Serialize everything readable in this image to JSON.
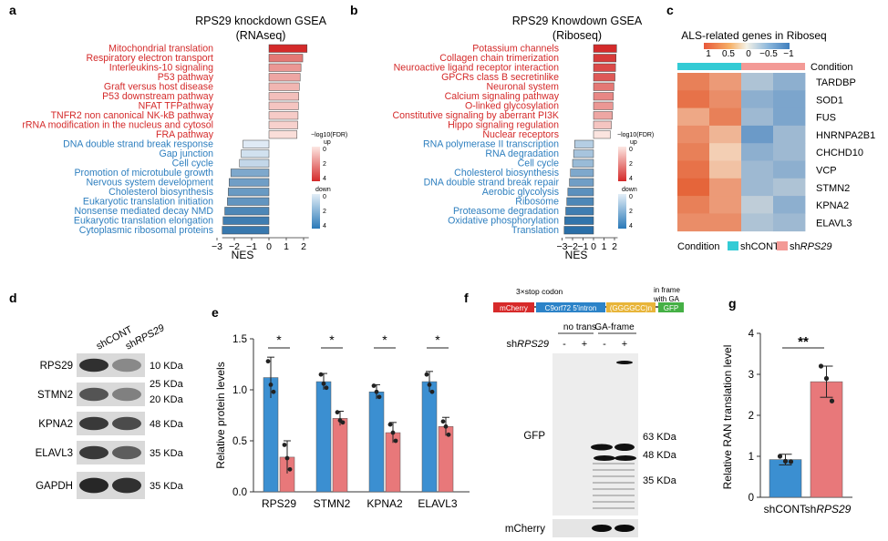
{
  "panel_letters": [
    "a",
    "b",
    "c",
    "d",
    "e",
    "f",
    "g"
  ],
  "colors": {
    "up": "#d42a2a",
    "down": "#2f7ebc",
    "red_text": "#d42a2a",
    "blue_text": "#2e7fbf",
    "bar_blue": "#3b8fd1",
    "bar_red": "#e8787a",
    "cont": "#33cbd5",
    "rps": "#f39a96"
  },
  "chart_data": [
    {
      "panel": "a",
      "type": "bar",
      "orientation": "horizontal",
      "title": "RPS29 knockdown GSEA",
      "subtitle": "(RNAseq)",
      "xlabel": "NES",
      "xlim": [
        -3,
        3
      ],
      "x_ticks": [
        "−3",
        "−2",
        "−1",
        "0",
        "1",
        "2"
      ],
      "categories": [
        "Mitochondrial translation",
        "Respiratory electron transport",
        "Interleukins-10 signaling",
        "P53 pathway",
        "Graft versus host disease",
        "P53 downstream pathway",
        "NFAT TFPathway",
        "TNFR2 non canonical NK-kB pathway",
        "rRNA modification in the nucleus and cytosol",
        "FRA pathway",
        "DNA double strand break response",
        "Gap junction",
        "Cell cycle",
        "Promotion of microtubule growth",
        "Nervous system development",
        "Cholesterol biosynthesis",
        "Eukaryotic translation initiation",
        "Nonsense mediated decay NMD",
        "Eukaryotic translation elongation",
        "Cytoplasmic ribosomal proteins"
      ],
      "values": [
        2.2,
        1.95,
        1.85,
        1.8,
        1.75,
        1.72,
        1.7,
        1.68,
        1.66,
        1.62,
        -1.5,
        -1.6,
        -1.7,
        -2.2,
        -2.3,
        -2.35,
        -2.4,
        -2.55,
        -2.65,
        -2.7
      ],
      "legend": {
        "title": "−log10(FDR)",
        "up": "up",
        "down": "down",
        "up_ticks": [
          "0",
          "2",
          "4"
        ],
        "down_ticks": [
          "0",
          "2",
          "4"
        ]
      }
    },
    {
      "panel": "b",
      "type": "bar",
      "orientation": "horizontal",
      "title": "RPS29 Knowdown GSEA",
      "subtitle": "(Riboseq)",
      "xlabel": "NES",
      "xlim": [
        -3,
        3
      ],
      "x_ticks": [
        "−3",
        "−2",
        "−1",
        "0",
        "1",
        "2"
      ],
      "categories": [
        "Potassium channels",
        "Collagen chain trimerization",
        "Neuroactive ligand receptor interaction",
        "GPCRs class B secretinlike",
        "Neuronal system",
        "Calcium signaling pathway",
        "O-linked glycosylation",
        "Constitutive signaling by aberrant PI3K",
        "Hippo signaling regulation",
        "Nuclear receptors",
        "RNA polymerase II transcription",
        "RNA degradation",
        "Cell cycle",
        "Cholesterol biosynthesis",
        "DNA double strand break repair",
        "Aerobic glycolysis",
        "Ribosome",
        "Proteasome degradation",
        "Oxidative phosphorylation",
        "Translation"
      ],
      "values": [
        2.2,
        2.15,
        2.1,
        2.05,
        1.95,
        1.9,
        1.85,
        1.8,
        1.7,
        1.6,
        -1.8,
        -1.9,
        -2.0,
        -2.2,
        -2.3,
        -2.45,
        -2.55,
        -2.65,
        -2.75,
        -2.8
      ],
      "legend": {
        "title": "−log10(FDR)",
        "up": "up",
        "down": "down",
        "up_ticks": [
          "0",
          "2",
          "4"
        ],
        "down_ticks": [
          "0",
          "2",
          "4"
        ]
      }
    },
    {
      "panel": "c",
      "type": "heatmap",
      "title": "ALS-related genes in Riboseq",
      "scale_ticks": [
        "1",
        "0.5",
        "0",
        "−0.5",
        "−1"
      ],
      "row_header": "Condition",
      "rows": [
        "TARDBP",
        "SOD1",
        "FUS",
        "HNRNPA2B1",
        "CHCHD10",
        "VCP",
        "STMN2",
        "KPNA2",
        "ELAVL3"
      ],
      "columns": [
        "shCONT",
        "shCONT",
        "shRPS29",
        "shRPS29"
      ],
      "values": [
        [
          0.8,
          0.6,
          -0.4,
          -0.6
        ],
        [
          0.9,
          0.7,
          -0.6,
          -0.7
        ],
        [
          0.5,
          0.8,
          -0.5,
          -0.7
        ],
        [
          0.7,
          0.4,
          -0.8,
          -0.5
        ],
        [
          0.8,
          0.2,
          -0.6,
          -0.5
        ],
        [
          0.9,
          0.3,
          -0.5,
          -0.6
        ],
        [
          1.0,
          0.6,
          -0.5,
          -0.4
        ],
        [
          0.8,
          0.6,
          -0.3,
          -0.6
        ],
        [
          0.7,
          0.7,
          -0.4,
          -0.5
        ]
      ],
      "legend_label": "Condition",
      "legend_items": [
        {
          "prefix": "shCONT",
          "italic": ""
        },
        {
          "prefix": "sh",
          "italic": "RPS29"
        }
      ]
    },
    {
      "panel": "e",
      "type": "bar",
      "ylabel": "Relative protein levels",
      "ylim": [
        0,
        1.5
      ],
      "y_ticks": [
        "0.0",
        "0.5",
        "1.0",
        "1.5"
      ],
      "categories": [
        "RPS29",
        "STMN2",
        "KPNA2",
        "ELAVL3"
      ],
      "series": [
        {
          "values": [
            1.12,
            1.08,
            0.98,
            1.08
          ],
          "err": [
            0.2,
            0.08,
            0.07,
            0.1
          ]
        },
        {
          "values": [
            0.34,
            0.72,
            0.58,
            0.64
          ],
          "err": [
            0.16,
            0.07,
            0.1,
            0.09
          ]
        }
      ],
      "sig": "*"
    },
    {
      "panel": "g",
      "type": "bar",
      "ylabel": "Relative RAN translation level",
      "ylim": [
        0,
        4
      ],
      "y_ticks": [
        "0",
        "1",
        "2",
        "3",
        "4"
      ],
      "categories": [
        "shCONT",
        "shRPS29"
      ],
      "values": [
        0.92,
        2.82
      ],
      "err": [
        0.13,
        0.38
      ],
      "sig": "**"
    }
  ],
  "panel_d": {
    "lanes": [
      "shCONT",
      "shRPS29"
    ],
    "bands": [
      {
        "name": "RPS29",
        "kda": [
          "10 KDa"
        ]
      },
      {
        "name": "STMN2",
        "kda": [
          "25 KDa",
          "20 KDa"
        ]
      },
      {
        "name": "KPNA2",
        "kda": [
          "48 KDa"
        ]
      },
      {
        "name": "ELAVL3",
        "kda": [
          "35 KDa"
        ]
      },
      {
        "name": "GAPDH",
        "kda": [
          "35 KDa"
        ]
      }
    ]
  },
  "panel_f": {
    "construct_label": "3×stop codon",
    "frame_label": "in frame with GA",
    "boxes": [
      "mCherry",
      "C9orf72 5′intron",
      "(GGGGCC)n",
      "GFP"
    ],
    "group1": "no trans",
    "group2": "GA-frame",
    "row_label": "shRPS29",
    "signs": [
      "-",
      "+",
      "-",
      "+"
    ],
    "gfp_label": "GFP",
    "kda": [
      "63 KDa",
      "48 KDa",
      "35 KDa"
    ],
    "mcherry_label": "mCherry"
  }
}
